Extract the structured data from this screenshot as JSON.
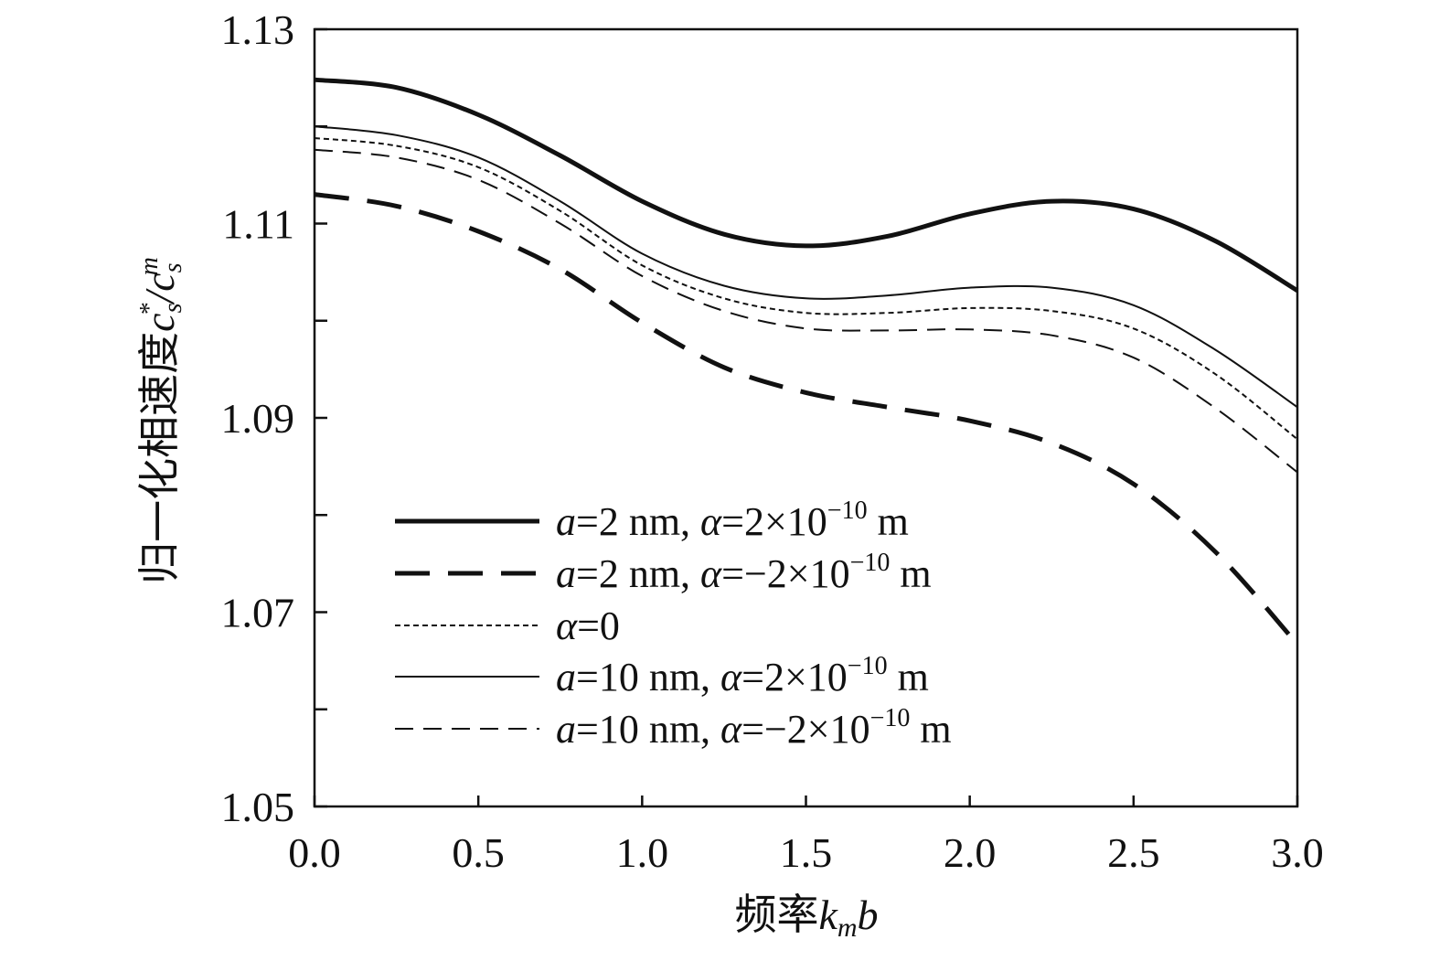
{
  "chart_data": {
    "type": "line",
    "xlabel": {
      "text": "频率",
      "var": "k",
      "sub": "m",
      "var2": "b"
    },
    "ylabel": {
      "text": "归一化相速度",
      "num": "c",
      "num_sub": "s",
      "num_sup": "*",
      "den": "c",
      "den_sub": "s",
      "den_sup": "m"
    },
    "xlim": [
      0,
      3.0
    ],
    "ylim": [
      1.05,
      1.13
    ],
    "x_ticks": [
      "0.0",
      "0.5",
      "1.0",
      "1.5",
      "2.0",
      "2.5",
      "3.0"
    ],
    "y_ticks": [
      "1.05",
      "1.07",
      "1.09",
      "1.11",
      "1.13"
    ],
    "grid": false,
    "legend_position": "lower-left",
    "x": [
      0.0,
      0.25,
      0.5,
      0.75,
      1.0,
      1.25,
      1.5,
      1.75,
      2.0,
      2.25,
      2.5,
      2.75,
      3.0
    ],
    "series": [
      {
        "name": {
          "a": "a",
          "a_val": "=2 nm, ",
          "alpha": "α",
          "alpha_val": "=2×10",
          "exp": "−10",
          "unit": " m"
        },
        "style": "thick-solid",
        "values": [
          1.1248,
          1.124,
          1.1212,
          1.117,
          1.1123,
          1.1089,
          1.1077,
          1.1087,
          1.111,
          1.1123,
          1.1115,
          1.1082,
          1.1031
        ]
      },
      {
        "name": {
          "a": "a",
          "a_val": "=2 nm, ",
          "alpha": "α",
          "alpha_val": "=−2×10",
          "exp": "−10",
          "unit": " m"
        },
        "style": "thick-dashed",
        "values": [
          1.113,
          1.1118,
          1.1092,
          1.1053,
          1.0998,
          1.0952,
          1.0926,
          1.0911,
          1.0897,
          1.0874,
          1.0832,
          1.0762,
          1.0667
        ]
      },
      {
        "name": {
          "a": "",
          "a_val": "",
          "alpha": "α",
          "alpha_val": "=0",
          "exp": "",
          "unit": ""
        },
        "style": "thin-dotted",
        "values": [
          1.1188,
          1.118,
          1.1158,
          1.1113,
          1.1057,
          1.1023,
          1.1008,
          1.1008,
          1.1013,
          1.101,
          1.0992,
          1.0945,
          1.0878
        ]
      },
      {
        "name": {
          "a": "a",
          "a_val": "=10 nm, ",
          "alpha": "α",
          "alpha_val": "=2×10",
          "exp": "−10",
          "unit": " m"
        },
        "style": "thin-solid",
        "values": [
          1.12,
          1.1191,
          1.1168,
          1.1123,
          1.1069,
          1.1036,
          1.1023,
          1.1026,
          1.1034,
          1.1034,
          1.1016,
          1.097,
          1.0911
        ]
      },
      {
        "name": {
          "a": "a",
          "a_val": "=10 nm, ",
          "alpha": "α",
          "alpha_val": "=−2×10",
          "exp": "−10",
          "unit": " m"
        },
        "style": "thin-dashed",
        "values": [
          1.1176,
          1.1168,
          1.1145,
          1.11,
          1.1046,
          1.101,
          1.0992,
          1.099,
          1.0991,
          1.0985,
          1.0962,
          1.091,
          1.0844
        ]
      }
    ]
  }
}
